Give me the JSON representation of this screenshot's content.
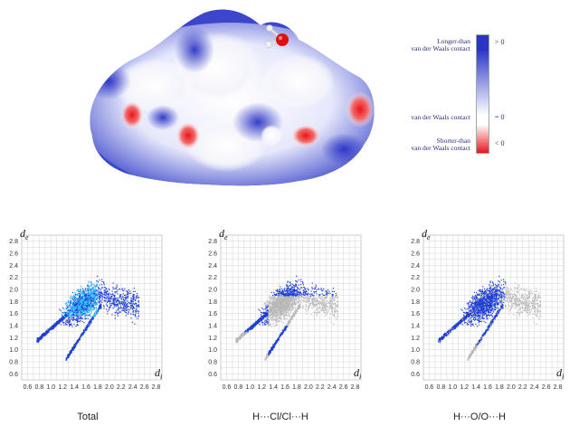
{
  "surface": {
    "colors": {
      "positive": "#2c34c8",
      "neutral": "#ffffff",
      "negative": "#e8161a"
    }
  },
  "legend": {
    "longer_than_line1": "Longer-than",
    "longer_than_line2": "van der Waals contact",
    "vdw_contact": "van der Waals contact",
    "shorter_than_line1": "Shorter-than",
    "shorter_than_line2": "van der Waals contact",
    "sym_gt": "> 0",
    "sym_eq": "= 0",
    "sym_lt": "< 0"
  },
  "plots": [
    {
      "caption": "Total",
      "mode": "total"
    },
    {
      "caption": "H···Cl/Cl···H",
      "mode": "cl"
    },
    {
      "caption": "H···O/O···H",
      "mode": "o"
    }
  ],
  "chart_data": [
    {
      "type": "scatter",
      "xlabel_main": "d",
      "xlabel_sub": "i",
      "ylabel_main": "d",
      "ylabel_sub": "e",
      "xticks": [
        "0.6",
        "0.8",
        "1.0",
        "1.2",
        "1.4",
        "1.6",
        "1.8",
        "2.0",
        "2.2",
        "2.4",
        "2.6",
        "2.8"
      ],
      "yticks": [
        "0.6",
        "0.8",
        "1.0",
        "1.2",
        "1.4",
        "1.6",
        "1.8",
        "2.0",
        "2.2",
        "2.4",
        "2.6",
        "2.8"
      ],
      "xlim": [
        0.5,
        2.9
      ],
      "ylim": [
        0.5,
        2.9
      ],
      "colors": {
        "highlight": "#1e3fd6",
        "background": "#b8b8b8",
        "dense": "#30c0ff"
      }
    }
  ]
}
